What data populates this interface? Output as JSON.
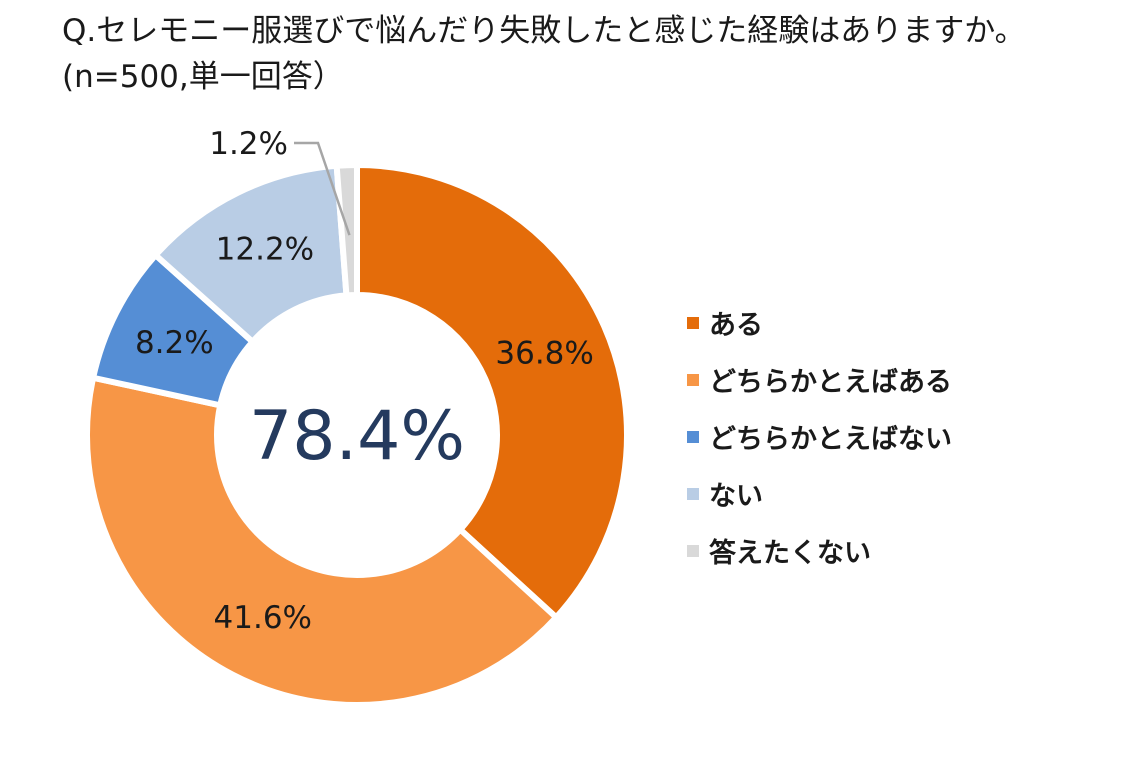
{
  "chart_data": {
    "type": "pie",
    "title": "Q.セレモニー服選びで悩んだり失敗したと感じた経験はありますか。(n=500,単一回答）",
    "center_label": "78.4%",
    "categories": [
      "ある",
      "どちらかとえばある",
      "どちらかとえばない",
      "ない",
      "答えたくない"
    ],
    "values": [
      36.8,
      41.6,
      8.2,
      12.2,
      1.2
    ],
    "value_labels": [
      "36.8%",
      "41.6%",
      "8.2%",
      "12.2%",
      "1.2%"
    ],
    "colors": [
      "#e46c0a",
      "#f79646",
      "#558ed5",
      "#b9cde5",
      "#d9d9d9"
    ],
    "legend_position": "right"
  }
}
